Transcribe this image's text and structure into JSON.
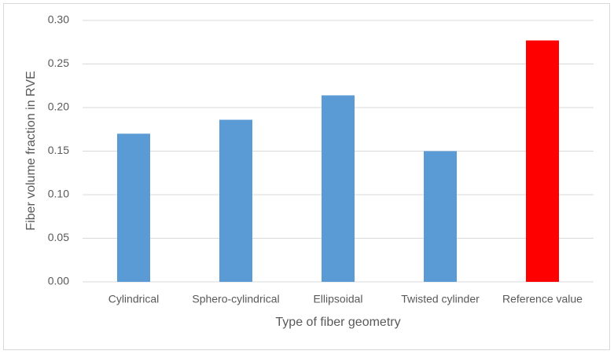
{
  "chart_data": {
    "type": "bar",
    "x_label": "Type of fiber geometry",
    "y_label": "Fiber volume fraction in RVE",
    "categories": [
      "Cylindrical",
      "Sphero-cylindrical",
      "Ellipsoidal",
      "Twisted cylinder",
      "Reference value"
    ],
    "values": [
      0.17,
      0.186,
      0.214,
      0.15,
      0.277
    ],
    "colors": [
      "#5b9bd5",
      "#5b9bd5",
      "#5b9bd5",
      "#5b9bd5",
      "#ff0000"
    ],
    "ylim": [
      0,
      0.3
    ],
    "yticks": [
      {
        "value": 0,
        "label": "0.00"
      },
      {
        "value": 0.05,
        "label": "0.05"
      },
      {
        "value": 0.1,
        "label": "0.10"
      },
      {
        "value": 0.15,
        "label": "0.15"
      },
      {
        "value": 0.2,
        "label": "0.20"
      },
      {
        "value": 0.25,
        "label": "0.25"
      },
      {
        "value": 0.3,
        "label": "0.30"
      }
    ],
    "grid": true
  }
}
